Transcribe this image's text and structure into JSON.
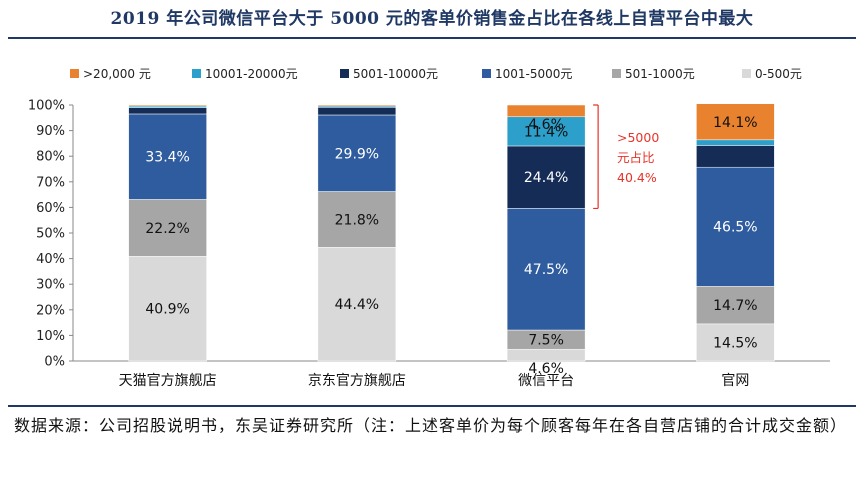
{
  "title": "2019 年公司微信平台大于 5000 元的客单价销售金占比在各线上自营平台中最大",
  "source": "数据来源：公司招股说明书，东吴证券研究所（注：上述客单价为每个顾客每年在各自营店铺的合计成交金额）",
  "annotation": {
    "line1": ">5000",
    "line2": "元占比",
    "line3": "40.4%"
  },
  "chart_data": {
    "type": "bar",
    "stacked": true,
    "categories": [
      "天猫官方旗舰店",
      "京东官方旗舰店",
      "微信平台",
      "官网"
    ],
    "ylim": [
      0,
      100
    ],
    "yticks": [
      "0%",
      "10%",
      "20%",
      "30%",
      "40%",
      "50%",
      "60%",
      "70%",
      "80%",
      "90%",
      "100%"
    ],
    "legend_position": "top",
    "legend": [
      ">20,000 元",
      "10001-20000元",
      "5001-10000元",
      "1001-5000元",
      "501-1000元",
      "0-500元"
    ],
    "series": [
      {
        "name": "0-500元",
        "color": "#d9d9d9",
        "values": [
          40.9,
          44.4,
          4.6,
          14.5
        ],
        "labels": [
          "40.9%",
          "44.4%",
          "4.6%",
          "14.5%"
        ]
      },
      {
        "name": "501-1000元",
        "color": "#a6a6a6",
        "values": [
          22.2,
          21.8,
          7.5,
          14.7
        ],
        "labels": [
          "22.2%",
          "21.8%",
          "7.5%",
          "14.7%"
        ]
      },
      {
        "name": "1001-5000元",
        "color": "#2e5c9e",
        "values": [
          33.4,
          29.9,
          47.5,
          46.5
        ],
        "labels": [
          "33.4%",
          "29.9%",
          "47.5%",
          "46.5%"
        ]
      },
      {
        "name": "5001-10000元",
        "color": "#152d56",
        "values": [
          2.5,
          3.0,
          24.4,
          8.5
        ],
        "labels": [
          "",
          "",
          "24.4%",
          ""
        ]
      },
      {
        "name": "10001-20000元",
        "color": "#2c9fca",
        "values": [
          0.6,
          0.5,
          11.4,
          2.2
        ],
        "labels": [
          "",
          "",
          "11.4%",
          ""
        ]
      },
      {
        "name": ">20,000 元",
        "color": "#e8822f",
        "values": [
          0.4,
          0.4,
          4.6,
          14.1
        ],
        "labels": [
          "",
          "",
          "4.6%",
          "14.1%"
        ]
      }
    ]
  }
}
